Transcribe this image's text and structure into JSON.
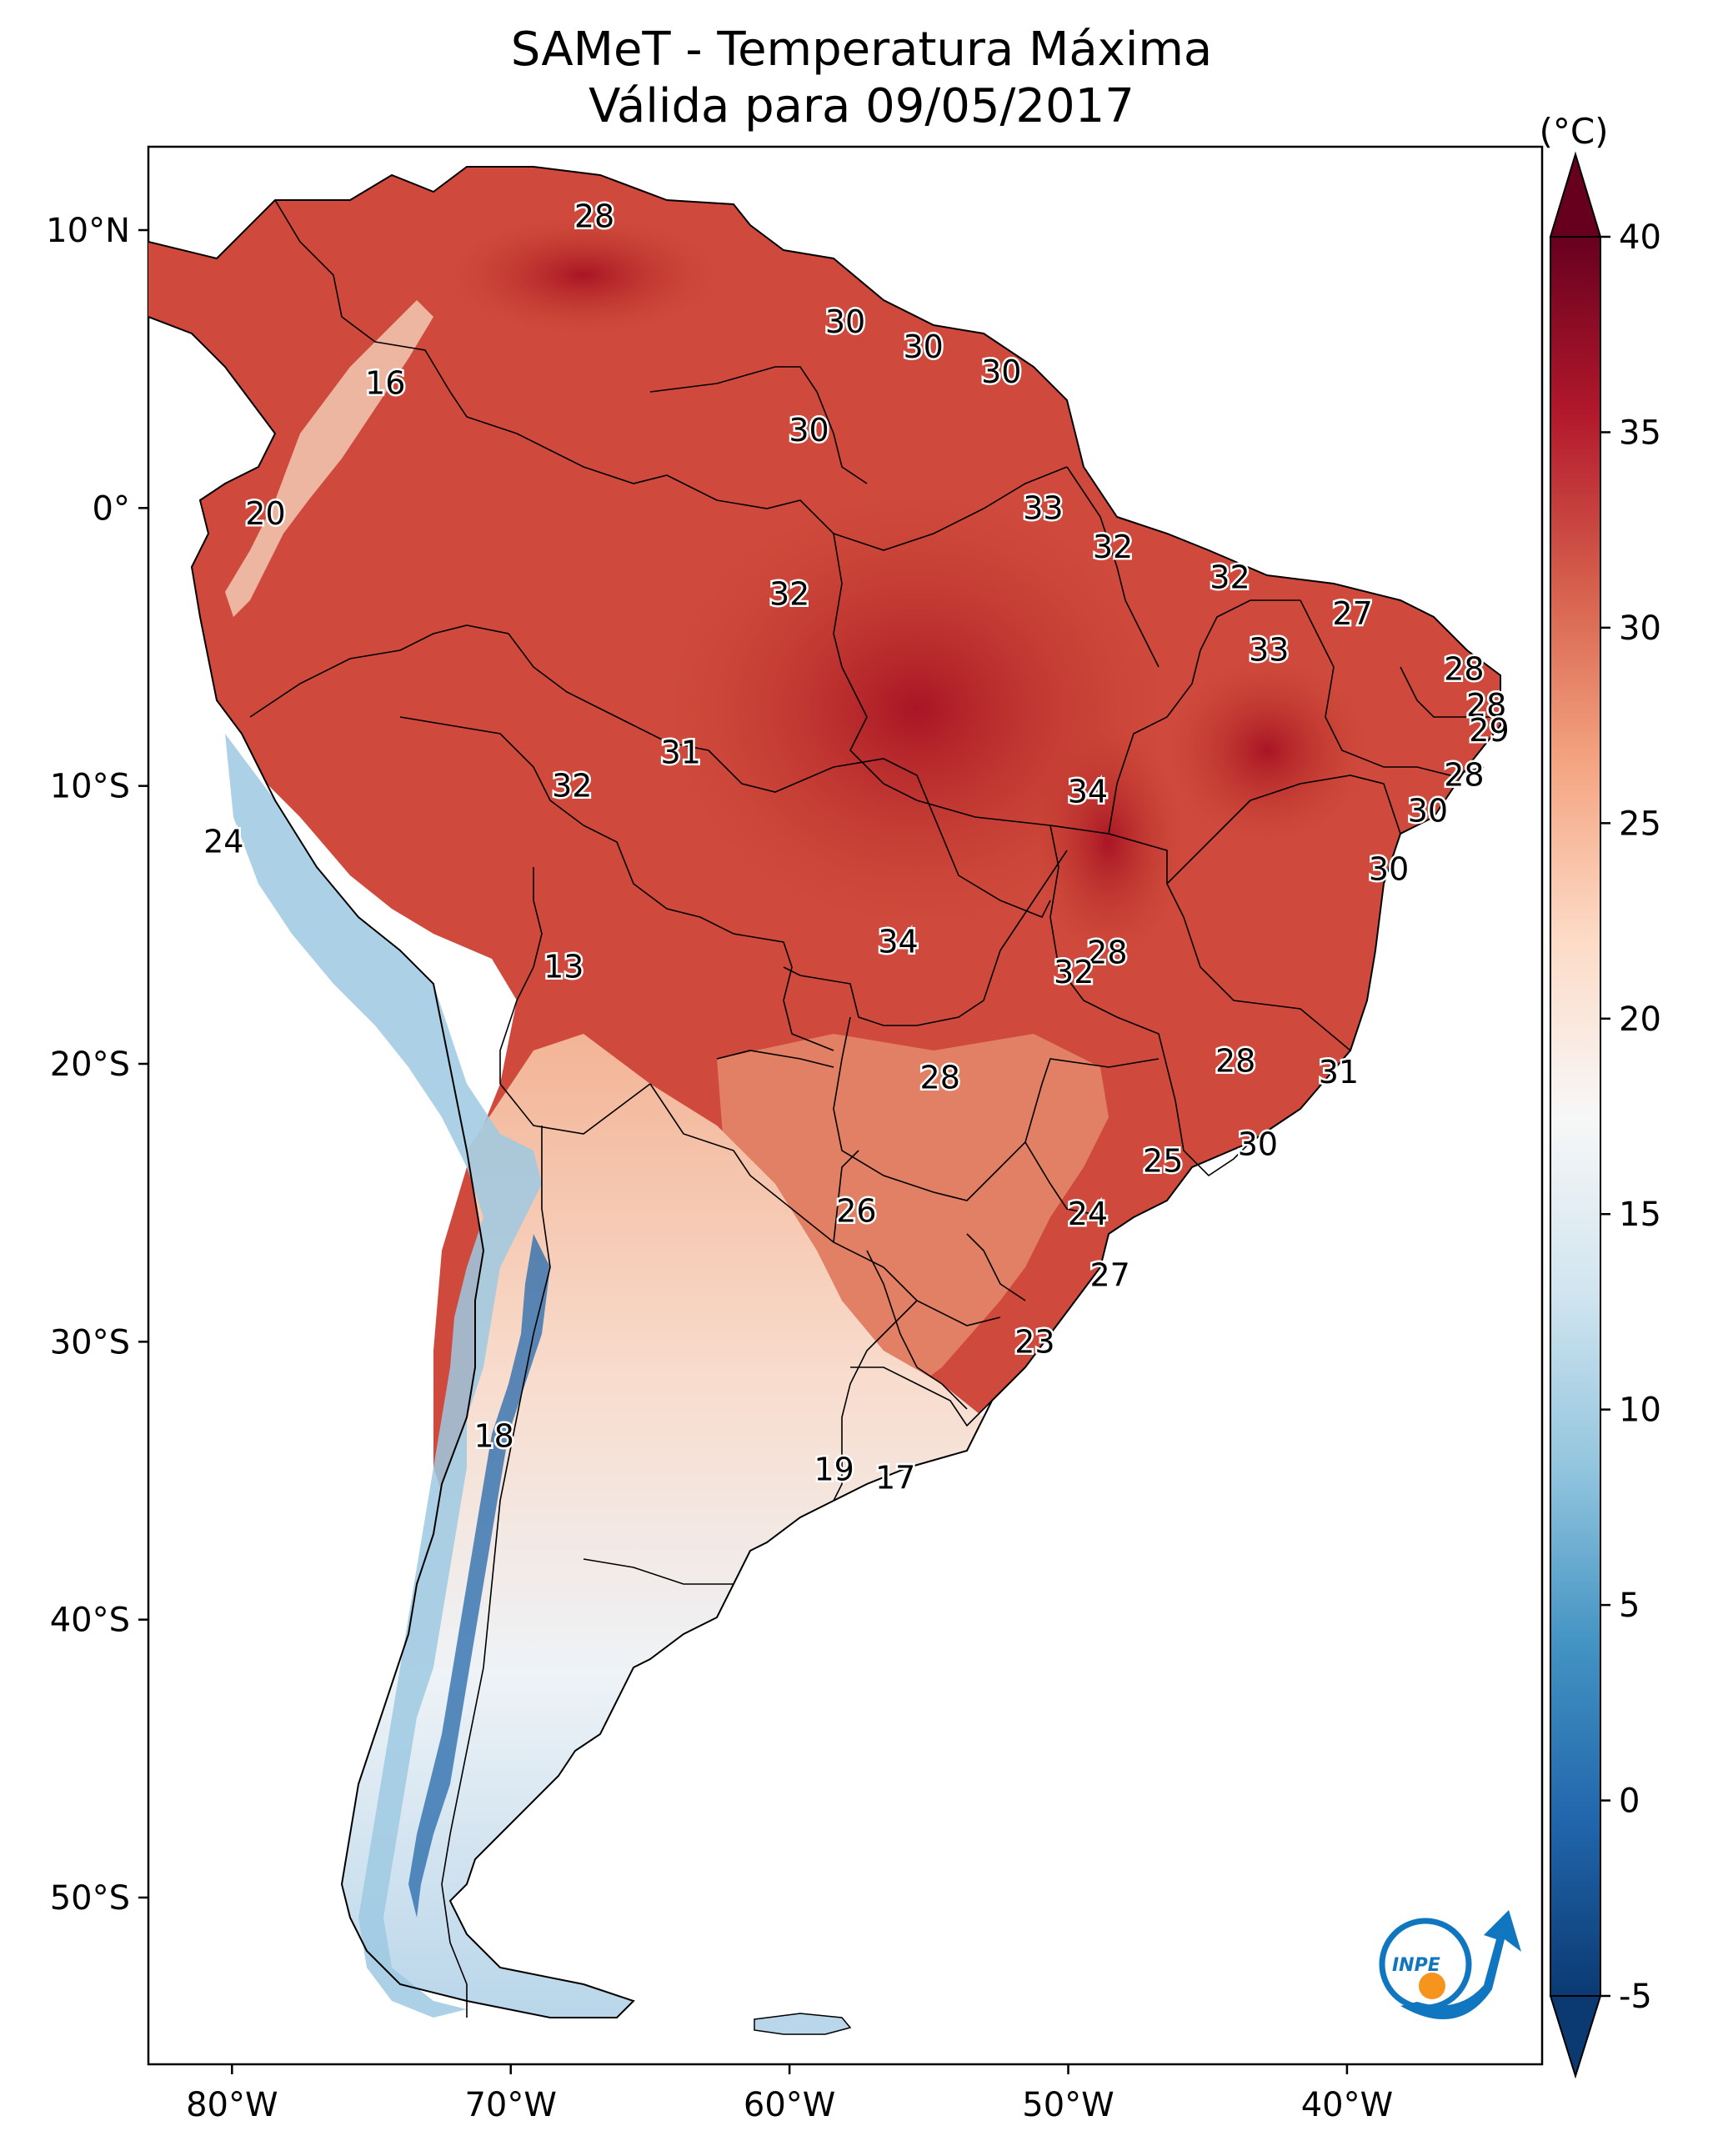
{
  "title": {
    "line1": "SAMeT - Temperatura Máxima",
    "line2": "Válida para 09/05/2017"
  },
  "map": {
    "lon_range": [
      -83,
      -33
    ],
    "lat_range": [
      -56,
      13
    ],
    "lat_ticks": [
      {
        "value": 10,
        "label": "10°N"
      },
      {
        "value": 0,
        "label": "0°"
      },
      {
        "value": -10,
        "label": "10°S"
      },
      {
        "value": -20,
        "label": "20°S"
      },
      {
        "value": -30,
        "label": "30°S"
      },
      {
        "value": -40,
        "label": "40°S"
      },
      {
        "value": -50,
        "label": "50°S"
      }
    ],
    "lon_ticks": [
      {
        "value": -80,
        "label": "80°W"
      },
      {
        "value": -70,
        "label": "70°W"
      },
      {
        "value": -60,
        "label": "60°W"
      },
      {
        "value": -50,
        "label": "50°W"
      },
      {
        "value": -40,
        "label": "40°W"
      }
    ],
    "city_labels": [
      {
        "lon": -67.0,
        "lat": 10.5,
        "value": "28"
      },
      {
        "lon": -58.0,
        "lat": 6.7,
        "value": "30"
      },
      {
        "lon": -55.2,
        "lat": 5.8,
        "value": "30"
      },
      {
        "lon": -52.4,
        "lat": 4.9,
        "value": "30"
      },
      {
        "lon": -59.3,
        "lat": 2.8,
        "value": "30"
      },
      {
        "lon": -74.5,
        "lat": 4.5,
        "value": "16"
      },
      {
        "lon": -78.8,
        "lat": -0.2,
        "value": "20"
      },
      {
        "lon": -60.0,
        "lat": -3.1,
        "value": "32"
      },
      {
        "lon": -50.9,
        "lat": 0.0,
        "value": "33"
      },
      {
        "lon": -48.4,
        "lat": -1.4,
        "value": "32"
      },
      {
        "lon": -44.2,
        "lat": -2.5,
        "value": "32"
      },
      {
        "lon": -39.8,
        "lat": -3.8,
        "value": "27"
      },
      {
        "lon": -42.8,
        "lat": -5.1,
        "value": "33"
      },
      {
        "lon": -35.8,
        "lat": -5.8,
        "value": "28"
      },
      {
        "lon": -35.0,
        "lat": -7.1,
        "value": "28"
      },
      {
        "lon": -34.9,
        "lat": -8.0,
        "value": "29"
      },
      {
        "lon": -35.8,
        "lat": -9.6,
        "value": "28"
      },
      {
        "lon": -37.1,
        "lat": -10.9,
        "value": "30"
      },
      {
        "lon": -38.5,
        "lat": -13.0,
        "value": "30"
      },
      {
        "lon": -63.9,
        "lat": -8.8,
        "value": "31"
      },
      {
        "lon": -67.8,
        "lat": -10.0,
        "value": "32"
      },
      {
        "lon": -49.3,
        "lat": -10.2,
        "value": "34"
      },
      {
        "lon": -80.3,
        "lat": -12.0,
        "value": "24"
      },
      {
        "lon": -56.1,
        "lat": -15.6,
        "value": "34"
      },
      {
        "lon": -68.1,
        "lat": -16.5,
        "value": "13"
      },
      {
        "lon": -48.6,
        "lat": -16.0,
        "value": "28"
      },
      {
        "lon": -49.8,
        "lat": -16.7,
        "value": "32"
      },
      {
        "lon": -44.0,
        "lat": -19.9,
        "value": "28"
      },
      {
        "lon": -40.3,
        "lat": -20.3,
        "value": "31"
      },
      {
        "lon": -54.6,
        "lat": -20.5,
        "value": "28"
      },
      {
        "lon": -43.2,
        "lat": -22.9,
        "value": "30"
      },
      {
        "lon": -46.6,
        "lat": -23.5,
        "value": "25"
      },
      {
        "lon": -57.6,
        "lat": -25.3,
        "value": "26"
      },
      {
        "lon": -49.3,
        "lat": -25.4,
        "value": "24"
      },
      {
        "lon": -48.5,
        "lat": -27.6,
        "value": "27"
      },
      {
        "lon": -51.2,
        "lat": -30.0,
        "value": "23"
      },
      {
        "lon": -70.6,
        "lat": -33.4,
        "value": "18"
      },
      {
        "lon": -58.4,
        "lat": -34.6,
        "value": "19"
      },
      {
        "lon": -56.2,
        "lat": -34.9,
        "value": "17"
      }
    ]
  },
  "colorbar": {
    "unit_label": "(°C)",
    "min": -5,
    "max": 40,
    "ticks": [
      "-5",
      "0",
      "5",
      "10",
      "15",
      "20",
      "25",
      "30",
      "35",
      "40"
    ],
    "colors": [
      "#0b3a73",
      "#2166ac",
      "#4393c3",
      "#92c5de",
      "#d1e5f0",
      "#f7f7f7",
      "#fddbc7",
      "#f4a582",
      "#d6604d",
      "#b2182b",
      "#67001f"
    ]
  },
  "logo": {
    "text": "INPE",
    "colors": {
      "blue": "#1176c0",
      "orange": "#f7941d"
    }
  }
}
